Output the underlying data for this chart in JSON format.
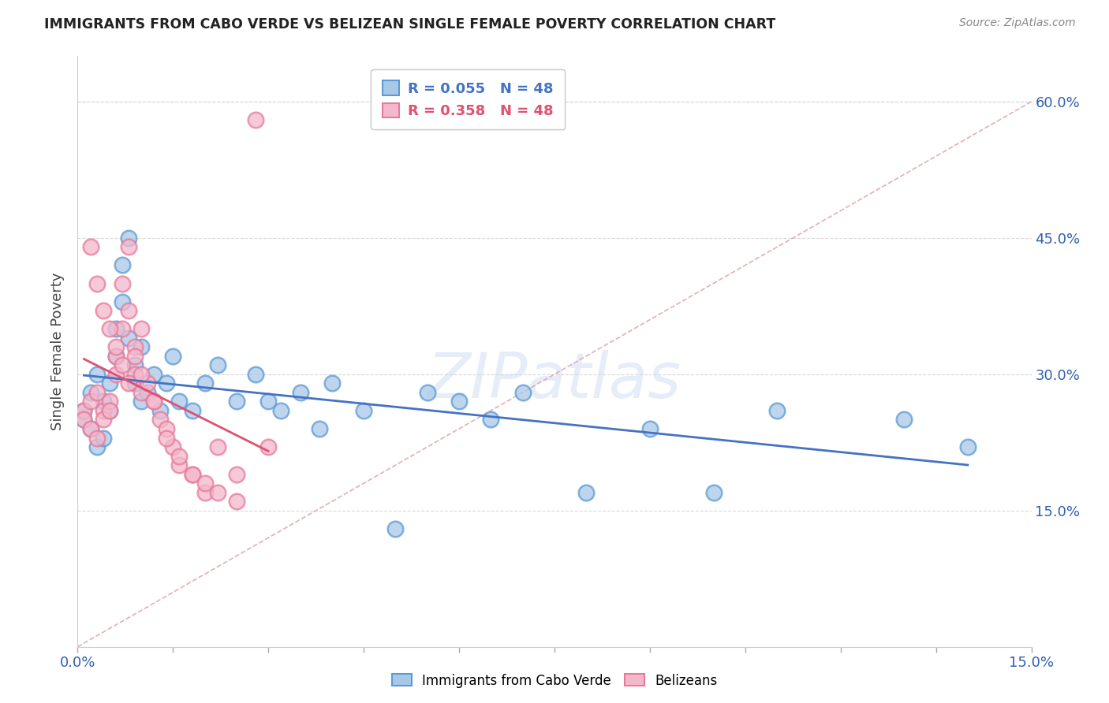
{
  "title": "IMMIGRANTS FROM CABO VERDE VS BELIZEAN SINGLE FEMALE POVERTY CORRELATION CHART",
  "source": "Source: ZipAtlas.com",
  "ylabel": "Single Female Poverty",
  "xlim": [
    0.0,
    0.15
  ],
  "ylim": [
    0.0,
    0.65
  ],
  "y_tick_vals": [
    0.15,
    0.3,
    0.45,
    0.6
  ],
  "y_tick_labels": [
    "15.0%",
    "30.0%",
    "45.0%",
    "60.0%"
  ],
  "x_tick_labels_shown": [
    "0.0%",
    "15.0%"
  ],
  "legend_blue_label": "R = 0.055   N = 48",
  "legend_pink_label": "R = 0.358   N = 48",
  "legend_bottom_blue": "Immigrants from Cabo Verde",
  "legend_bottom_pink": "Belizeans",
  "blue_face": "#a8c8e8",
  "blue_edge": "#5b9bd5",
  "pink_face": "#f4b8cc",
  "pink_edge": "#e87a9a",
  "line_blue": "#4472c4",
  "line_pink": "#e05070",
  "diag_color": "#e0a0a8",
  "watermark": "ZIPatlas",
  "cabo_verde_x": [
    0.001,
    0.001,
    0.002,
    0.002,
    0.003,
    0.003,
    0.004,
    0.004,
    0.005,
    0.005,
    0.006,
    0.006,
    0.007,
    0.007,
    0.008,
    0.008,
    0.009,
    0.009,
    0.01,
    0.01,
    0.011,
    0.012,
    0.013,
    0.014,
    0.015,
    0.016,
    0.018,
    0.02,
    0.022,
    0.025,
    0.028,
    0.03,
    0.032,
    0.035,
    0.038,
    0.04,
    0.045,
    0.05,
    0.055,
    0.06,
    0.065,
    0.07,
    0.08,
    0.09,
    0.1,
    0.11,
    0.13,
    0.14
  ],
  "cabo_verde_y": [
    0.26,
    0.25,
    0.28,
    0.24,
    0.3,
    0.22,
    0.27,
    0.23,
    0.29,
    0.26,
    0.32,
    0.35,
    0.38,
    0.42,
    0.45,
    0.34,
    0.29,
    0.31,
    0.27,
    0.33,
    0.28,
    0.3,
    0.26,
    0.29,
    0.32,
    0.27,
    0.26,
    0.29,
    0.31,
    0.27,
    0.3,
    0.27,
    0.26,
    0.28,
    0.24,
    0.29,
    0.26,
    0.13,
    0.28,
    0.27,
    0.25,
    0.28,
    0.17,
    0.24,
    0.17,
    0.26,
    0.25,
    0.22
  ],
  "belizean_x": [
    0.001,
    0.001,
    0.002,
    0.002,
    0.003,
    0.003,
    0.004,
    0.004,
    0.005,
    0.005,
    0.006,
    0.006,
    0.007,
    0.007,
    0.008,
    0.008,
    0.009,
    0.009,
    0.01,
    0.01,
    0.011,
    0.012,
    0.013,
    0.014,
    0.015,
    0.016,
    0.018,
    0.02,
    0.022,
    0.025,
    0.002,
    0.003,
    0.004,
    0.005,
    0.006,
    0.007,
    0.008,
    0.009,
    0.01,
    0.012,
    0.014,
    0.016,
    0.018,
    0.02,
    0.022,
    0.025,
    0.028,
    0.03
  ],
  "belizean_y": [
    0.26,
    0.25,
    0.27,
    0.24,
    0.28,
    0.23,
    0.26,
    0.25,
    0.27,
    0.26,
    0.3,
    0.32,
    0.35,
    0.4,
    0.44,
    0.37,
    0.33,
    0.3,
    0.28,
    0.35,
    0.29,
    0.27,
    0.25,
    0.24,
    0.22,
    0.2,
    0.19,
    0.17,
    0.22,
    0.19,
    0.44,
    0.4,
    0.37,
    0.35,
    0.33,
    0.31,
    0.29,
    0.32,
    0.3,
    0.27,
    0.23,
    0.21,
    0.19,
    0.18,
    0.17,
    0.16,
    0.58,
    0.22
  ]
}
